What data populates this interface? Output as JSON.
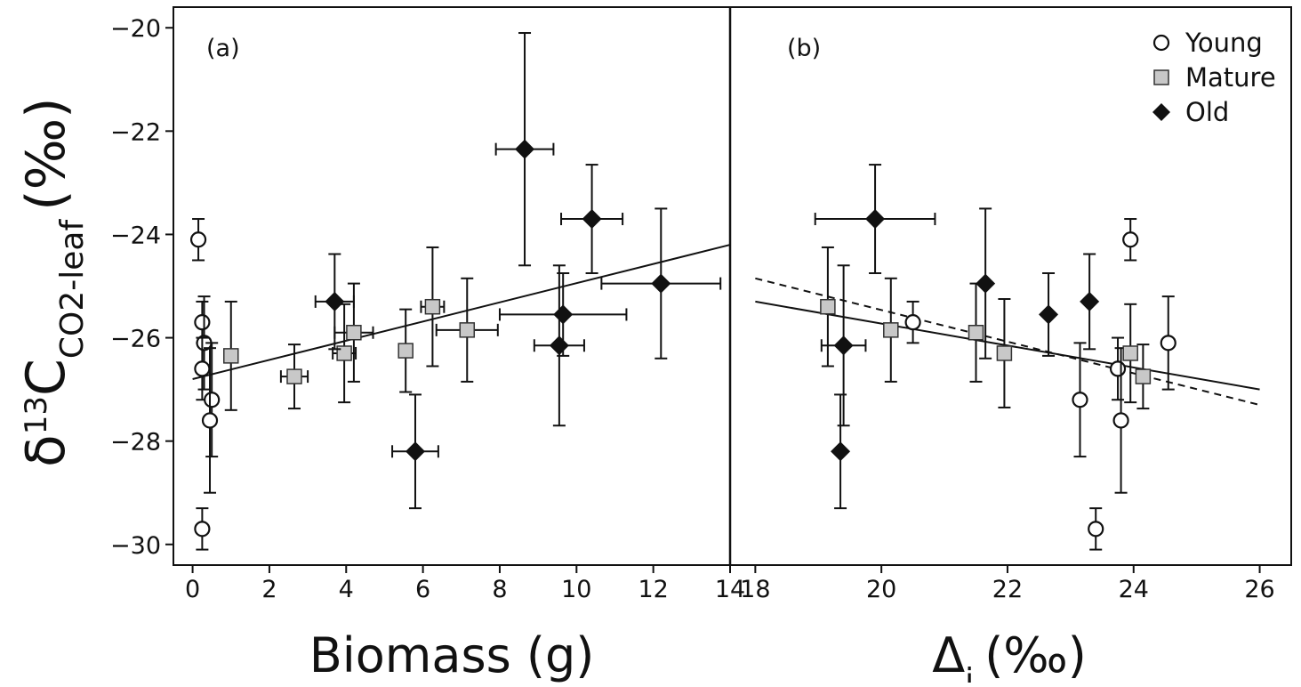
{
  "y_label": {
    "delta": "δ",
    "sup": "13",
    "main": "C",
    "sub": "CO2-leaf",
    "unit": "(‰)"
  },
  "chart_data": [
    {
      "type": "scatter",
      "panel_label": "(a)",
      "xlabel": "Biomass (g)",
      "xlim": [
        -0.5,
        14
      ],
      "ylim": [
        -30.4,
        -19.6
      ],
      "x_ticks": [
        0,
        2,
        4,
        6,
        8,
        10,
        12,
        14
      ],
      "y_ticks": [
        -30,
        -28,
        -26,
        -24,
        -22,
        -20
      ],
      "series": [
        {
          "name": "Young",
          "marker": "circle",
          "points": [
            {
              "x": 0.15,
              "y": -24.1,
              "yerr": 0.4,
              "xerr": 0
            },
            {
              "x": 0.25,
              "y": -25.7,
              "yerr": 0.4,
              "xerr": 0
            },
            {
              "x": 0.3,
              "y": -26.1,
              "yerr": 0.9,
              "xerr": 0
            },
            {
              "x": 0.25,
              "y": -26.6,
              "yerr": 0.6,
              "xerr": 0
            },
            {
              "x": 0.5,
              "y": -27.2,
              "yerr": 1.1,
              "xerr": 0
            },
            {
              "x": 0.45,
              "y": -27.6,
              "yerr": 1.4,
              "xerr": 0
            },
            {
              "x": 0.25,
              "y": -29.7,
              "yerr": 0.4,
              "xerr": 0
            }
          ]
        },
        {
          "name": "Mature",
          "marker": "square",
          "points": [
            {
              "x": 1.0,
              "y": -26.35,
              "yerr": 1.05,
              "xerr": 0
            },
            {
              "x": 2.65,
              "y": -26.75,
              "yerr": 0.62,
              "xerr": 0.35
            },
            {
              "x": 3.95,
              "y": -26.3,
              "yerr": 0.95,
              "xerr": 0.3
            },
            {
              "x": 4.2,
              "y": -25.9,
              "yerr": 0.95,
              "xerr": 0.5
            },
            {
              "x": 5.55,
              "y": -26.25,
              "yerr": 0.8,
              "xerr": 0.1
            },
            {
              "x": 6.25,
              "y": -25.4,
              "yerr": 1.15,
              "xerr": 0.3
            },
            {
              "x": 7.15,
              "y": -25.85,
              "yerr": 1.0,
              "xerr": 0.8
            }
          ]
        },
        {
          "name": "Old",
          "marker": "diamond",
          "points": [
            {
              "x": 3.7,
              "y": -25.3,
              "yerr": 0.92,
              "xerr": 0.5
            },
            {
              "x": 5.8,
              "y": -28.2,
              "yerr": 1.1,
              "xerr": 0.6
            },
            {
              "x": 8.65,
              "y": -22.35,
              "yerr": 2.25,
              "xerr": 0.75
            },
            {
              "x": 9.55,
              "y": -26.15,
              "yerr": 1.55,
              "xerr": 0.65
            },
            {
              "x": 9.65,
              "y": -25.55,
              "yerr": 0.8,
              "xerr": 1.65
            },
            {
              "x": 10.4,
              "y": -23.7,
              "yerr": 1.05,
              "xerr": 0.8
            },
            {
              "x": 12.2,
              "y": -24.95,
              "yerr": 1.45,
              "xerr": 1.55
            }
          ]
        }
      ],
      "fit_lines": [
        {
          "style": "solid",
          "x": [
            0,
            14
          ],
          "y": [
            -26.8,
            -24.2
          ]
        }
      ]
    },
    {
      "type": "scatter",
      "panel_label": "(b)",
      "xlabel": "Δi (‰)",
      "xlabel_main": "Δ",
      "xlabel_sub": "i",
      "xlabel_unit": "(‰)",
      "xlim": [
        17.6,
        26.5
      ],
      "ylim": [
        -30.4,
        -19.6
      ],
      "x_ticks": [
        18,
        20,
        22,
        24,
        26
      ],
      "y_ticks": [
        -30,
        -28,
        -26,
        -24,
        -22,
        -20
      ],
      "legend": {
        "position": "top-right",
        "entries": [
          {
            "label": "Young",
            "marker": "circle"
          },
          {
            "label": "Mature",
            "marker": "square"
          },
          {
            "label": "Old",
            "marker": "diamond"
          }
        ]
      },
      "series": [
        {
          "name": "Young",
          "marker": "circle",
          "points": [
            {
              "x": 20.5,
              "y": -25.7,
              "yerr": 0.4,
              "xerr": 0
            },
            {
              "x": 23.15,
              "y": -27.2,
              "yerr": 1.1,
              "xerr": 0
            },
            {
              "x": 23.75,
              "y": -26.6,
              "yerr": 0.6,
              "xerr": 0
            },
            {
              "x": 23.8,
              "y": -27.6,
              "yerr": 1.4,
              "xerr": 0
            },
            {
              "x": 23.95,
              "y": -24.1,
              "yerr": 0.4,
              "xerr": 0
            },
            {
              "x": 24.55,
              "y": -26.1,
              "yerr": 0.9,
              "xerr": 0
            },
            {
              "x": 23.4,
              "y": -29.7,
              "yerr": 0.4,
              "xerr": 0
            }
          ]
        },
        {
          "name": "Mature",
          "marker": "square",
          "points": [
            {
              "x": 19.15,
              "y": -25.4,
              "yerr": 1.15,
              "xerr": 0
            },
            {
              "x": 20.15,
              "y": -25.85,
              "yerr": 1.0,
              "xerr": 0
            },
            {
              "x": 21.5,
              "y": -25.9,
              "yerr": 0.95,
              "xerr": 0
            },
            {
              "x": 21.95,
              "y": -26.3,
              "yerr": 1.05,
              "xerr": 0
            },
            {
              "x": 23.95,
              "y": -26.3,
              "yerr": 0.95,
              "xerr": 0
            },
            {
              "x": 24.15,
              "y": -26.75,
              "yerr": 0.62,
              "xerr": 0
            }
          ]
        },
        {
          "name": "Old",
          "marker": "diamond",
          "points": [
            {
              "x": 19.35,
              "y": -28.2,
              "yerr": 1.1,
              "xerr": 0
            },
            {
              "x": 19.4,
              "y": -26.15,
              "yerr": 1.55,
              "xerr": 0.35
            },
            {
              "x": 19.9,
              "y": -23.7,
              "yerr": 1.05,
              "xerr": 0.95
            },
            {
              "x": 21.65,
              "y": -24.95,
              "yerr": 1.45,
              "xerr": 0
            },
            {
              "x": 22.65,
              "y": -25.55,
              "yerr": 0.8,
              "xerr": 0
            },
            {
              "x": 23.3,
              "y": -25.3,
              "yerr": 0.92,
              "xerr": 0
            }
          ]
        }
      ],
      "fit_lines": [
        {
          "style": "solid",
          "x": [
            18,
            26
          ],
          "y": [
            -25.3,
            -27.0
          ]
        },
        {
          "style": "dashed",
          "x": [
            18,
            26
          ],
          "y": [
            -24.85,
            -27.3
          ]
        }
      ]
    }
  ]
}
